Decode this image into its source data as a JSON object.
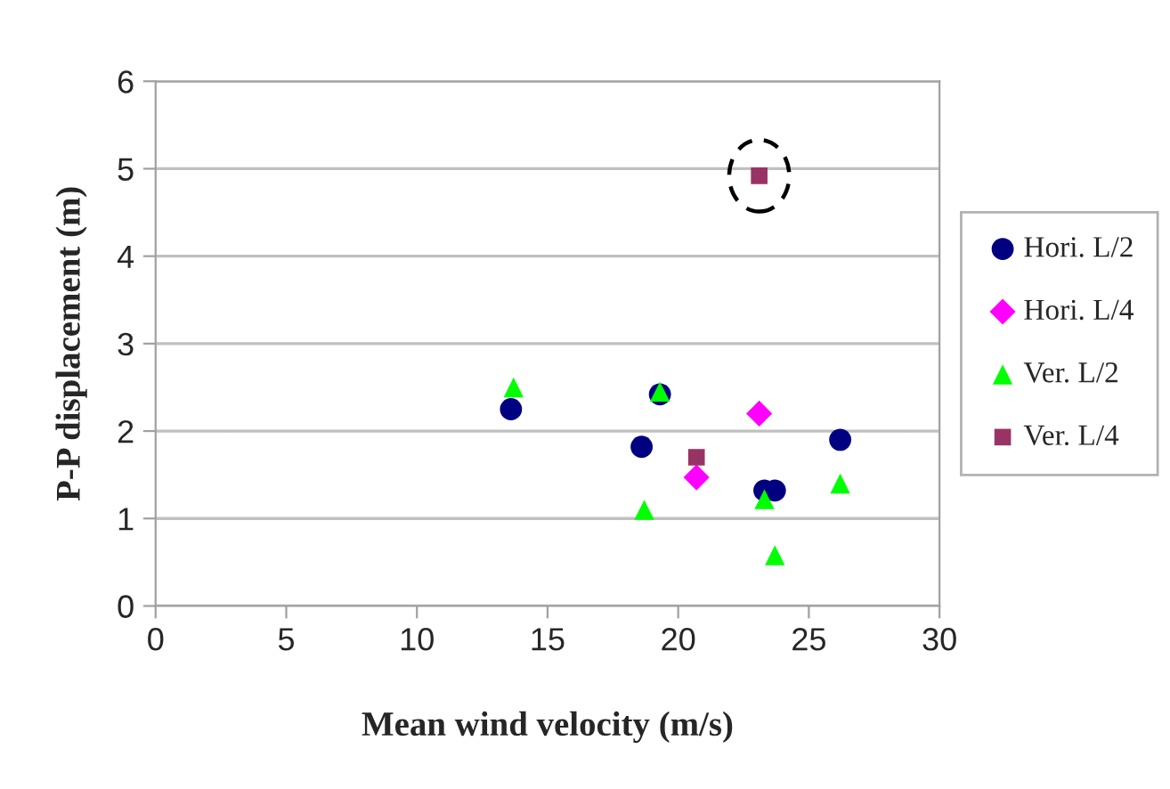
{
  "chart_data": {
    "type": "scatter",
    "xlabel": "Mean wind velocity (m/s)",
    "ylabel": "P-P displacement (m)",
    "xlim": [
      0,
      30
    ],
    "xticks": [
      0,
      5,
      10,
      15,
      20,
      25,
      30
    ],
    "ylim": [
      0,
      6
    ],
    "yticks": [
      0,
      1,
      2,
      3,
      4,
      5,
      6
    ],
    "grid": "y",
    "legend": "right",
    "series": [
      {
        "name": "Hori. L/2",
        "color": "#000080",
        "marker": "circle",
        "x": [
          13.6,
          18.6,
          19.3,
          23.3,
          23.7,
          26.2
        ],
        "values": [
          2.25,
          1.82,
          2.42,
          1.32,
          1.32,
          1.9
        ]
      },
      {
        "name": "Hori. L/4",
        "color": "#ff00ff",
        "marker": "diamond",
        "x": [
          20.7,
          23.1
        ],
        "values": [
          1.47,
          2.2
        ]
      },
      {
        "name": "Ver. L/2",
        "color": "#00ff00",
        "marker": "triangle",
        "x": [
          13.7,
          18.7,
          19.3,
          23.3,
          23.7,
          26.2
        ],
        "values": [
          2.5,
          1.1,
          2.45,
          1.22,
          0.58,
          1.4
        ]
      },
      {
        "name": "Ver. L/4",
        "color": "#993366",
        "marker": "square",
        "x": [
          20.7,
          23.1
        ],
        "values": [
          1.7,
          4.92
        ]
      }
    ]
  }
}
